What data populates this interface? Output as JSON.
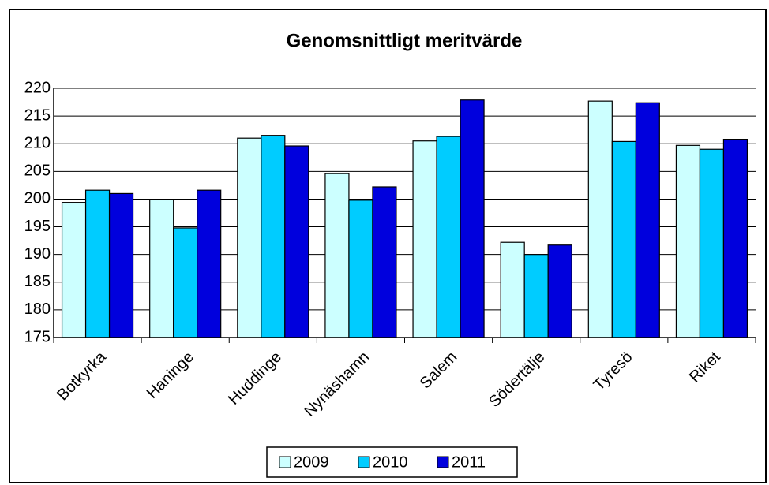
{
  "chart_data": {
    "type": "bar",
    "title": "Genomsnittligt meritvärde",
    "categories": [
      "Botkyrka",
      "Haninge",
      "Huddinge",
      "Nynäshamn",
      "Salem",
      "Södertälje",
      "Tyresö",
      "Riket"
    ],
    "series": [
      {
        "name": "2009",
        "color": "#ccffff",
        "values": [
          199.4,
          199.9,
          211.0,
          204.6,
          210.5,
          192.2,
          217.7,
          209.7
        ]
      },
      {
        "name": "2010",
        "color": "#00ccff",
        "values": [
          201.6,
          194.8,
          211.5,
          199.8,
          211.3,
          190.0,
          210.4,
          209.0
        ]
      },
      {
        "name": "2011",
        "color": "#0000dd",
        "values": [
          201.0,
          201.6,
          209.6,
          202.2,
          217.9,
          191.7,
          217.4,
          210.8
        ]
      }
    ],
    "ylim": [
      175,
      220
    ],
    "yticks": [
      175,
      180,
      185,
      190,
      195,
      200,
      205,
      210,
      215,
      220
    ],
    "grid": true,
    "legend": "bottom"
  }
}
